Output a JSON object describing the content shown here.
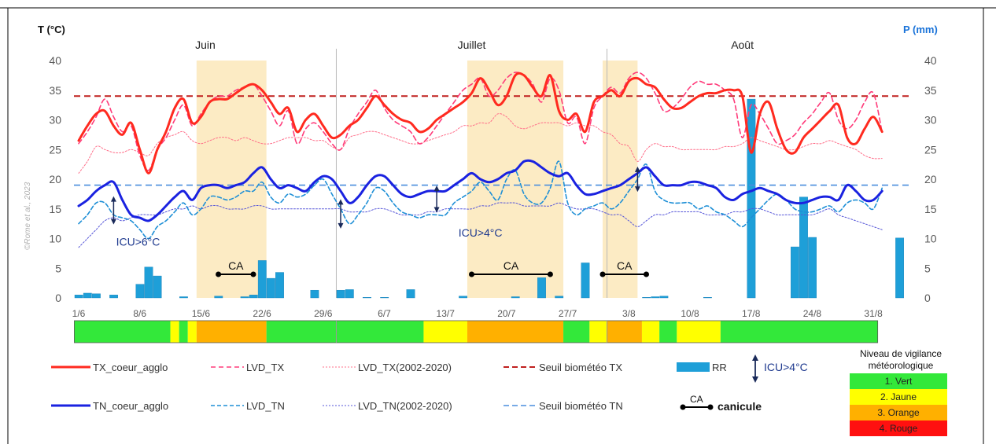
{
  "chart_data": {
    "type": "line",
    "y_left_label": "T (°C)",
    "y_right_label": "P (mm)",
    "y_left_range": [
      0,
      40
    ],
    "y_right_range": [
      0,
      40
    ],
    "y_ticks": [
      0,
      5,
      10,
      15,
      20,
      25,
      30,
      35,
      40
    ],
    "x_ticks": [
      {
        "day": 1,
        "label": "1/6"
      },
      {
        "day": 8,
        "label": "8/6"
      },
      {
        "day": 15,
        "label": "15/6"
      },
      {
        "day": 22,
        "label": "22/6"
      },
      {
        "day": 29,
        "label": "29/6"
      },
      {
        "day": 36,
        "label": "6/7"
      },
      {
        "day": 43,
        "label": "13/7"
      },
      {
        "day": 50,
        "label": "20/7"
      },
      {
        "day": 57,
        "label": "27/7"
      },
      {
        "day": 64,
        "label": "3/8"
      },
      {
        "day": 71,
        "label": "10/8"
      },
      {
        "day": 78,
        "label": "17/8"
      },
      {
        "day": 85,
        "label": "24/8"
      },
      {
        "day": 92,
        "label": "31/8"
      }
    ],
    "months": [
      {
        "label": "Juin",
        "center_day": 15.5
      },
      {
        "label": "Juillet",
        "center_day": 46
      },
      {
        "label": "Août",
        "center_day": 77
      }
    ],
    "month_separators": [
      30.5,
      61.5
    ],
    "watermark": "©Rome et al., 2023",
    "thresholds": {
      "TX": 34,
      "TN": 19
    },
    "heatwaves": [
      {
        "start": 14.5,
        "end": 22.5,
        "label": "CA",
        "bar_start": 17,
        "bar_end": 21
      },
      {
        "start": 45.5,
        "end": 56.5,
        "label": "CA",
        "bar_start": 46,
        "bar_end": 55
      },
      {
        "start": 61,
        "end": 65,
        "label": "CA",
        "bar_start": 61,
        "bar_end": 66
      }
    ],
    "annotations": [
      {
        "text": "ICU>6°C",
        "day": 7.8,
        "y": 9.5
      },
      {
        "text": "ICU>4°C",
        "day": 47,
        "y": 11
      }
    ],
    "icu_arrows": [
      {
        "day": 5,
        "y1": 17,
        "y2": 12.5
      },
      {
        "day": 31,
        "y1": 16.5,
        "y2": 11.8
      },
      {
        "day": 42,
        "y1": 18.8,
        "y2": 14.5
      },
      {
        "day": 65,
        "y1": 22,
        "y2": 18
      }
    ],
    "series": [
      {
        "name": "TX_coeur_agglo",
        "color": "#ff2a1f",
        "width": 3,
        "dash": "",
        "values": [
          26.5,
          29,
          31,
          31.5,
          29,
          27.5,
          29.5,
          25,
          21,
          25,
          28,
          32,
          33.5,
          29.5,
          30.5,
          33,
          33.5,
          33.5,
          34.5,
          35.5,
          36,
          35,
          33,
          31,
          32,
          28,
          30,
          31,
          29,
          27,
          27.5,
          29,
          30,
          32,
          34,
          32.5,
          31,
          30,
          29.5,
          28,
          28.5,
          30,
          31,
          32,
          33,
          34.5,
          37,
          35,
          32.5,
          34,
          37.5,
          37.5,
          35.5,
          34,
          37.5,
          31.5,
          30,
          31,
          28,
          33,
          34,
          35,
          34,
          36.5,
          37,
          36,
          35.5,
          33.5,
          32,
          32,
          33,
          34,
          34.5,
          34.5,
          35,
          35,
          34,
          24.5,
          31,
          33,
          28.5,
          25,
          24.5,
          27,
          28.5,
          30,
          31.5,
          32.5,
          27,
          26,
          28.5,
          30.5,
          28
        ]
      },
      {
        "name": "LVD_TX",
        "color": "#ff3b7a",
        "width": 1.6,
        "dash": "6,4",
        "values": [
          26,
          28,
          30.5,
          33.5,
          30.5,
          28,
          29,
          24,
          21.5,
          25,
          27,
          30,
          32.5,
          29,
          31,
          33,
          34,
          34,
          35,
          35.5,
          36,
          34,
          31.5,
          29,
          31.5,
          26,
          28.5,
          29.5,
          28,
          26,
          25,
          28.5,
          31,
          33,
          35,
          32,
          30,
          29,
          28,
          26,
          27,
          29,
          31,
          33,
          35,
          36,
          37,
          34,
          35,
          37,
          38,
          37.5,
          36,
          33,
          37,
          35,
          29.5,
          30.5,
          26,
          32,
          34,
          35.5,
          34.5,
          37,
          38,
          37,
          34.5,
          31.5,
          32,
          33.5,
          35.5,
          36.5,
          36,
          36,
          35,
          33.5,
          27,
          32.5,
          31,
          28.5,
          26,
          26.5,
          27.5,
          29.5,
          31,
          33,
          34.5,
          30,
          28.5,
          30,
          33,
          34.5,
          28
        ]
      },
      {
        "name": "LVD_TX(2002-2020)",
        "color": "#ff6f8a",
        "width": 1,
        "dash": "2,2",
        "values": [
          21,
          23,
          25.5,
          25,
          24.5,
          24.5,
          25,
          24.5,
          24,
          26,
          27,
          27.5,
          28,
          26.5,
          26,
          26.5,
          27,
          27,
          26.5,
          27,
          26.5,
          26,
          26,
          26.5,
          27,
          27,
          27,
          26.5,
          26.5,
          25.5,
          25,
          27,
          27.5,
          28,
          28,
          27.5,
          27,
          26.5,
          26,
          26,
          26.5,
          27,
          27.5,
          28,
          29,
          29,
          29.5,
          29.5,
          31,
          30.5,
          29,
          28.5,
          29,
          29.5,
          29.5,
          29.5,
          29,
          29.5,
          29,
          29,
          28,
          27.5,
          26,
          25.5,
          23,
          25,
          26,
          25.5,
          25.5,
          25,
          25,
          25,
          25,
          25,
          25.5,
          25.5,
          26,
          27,
          26.5,
          26,
          25.5,
          25,
          25,
          25.5,
          26,
          26,
          26.5,
          26,
          25.5,
          25,
          24,
          23.5,
          23.5
        ]
      },
      {
        "name": "TN_coeur_agglo",
        "color": "#1a22e0",
        "width": 3,
        "dash": "",
        "values": [
          15.5,
          16.5,
          18,
          19,
          19.5,
          16.5,
          14,
          13.5,
          13,
          14,
          15.5,
          17,
          18,
          16.5,
          18.5,
          19,
          19,
          18.5,
          19,
          19.5,
          21,
          22,
          20,
          18.5,
          19,
          18.5,
          18,
          19.5,
          20.5,
          20,
          18,
          16,
          17,
          19,
          20.5,
          20.5,
          19,
          17.5,
          17,
          17.5,
          18,
          18,
          18,
          19,
          20,
          21,
          20,
          19.5,
          20,
          21,
          21.5,
          23,
          23,
          22,
          21,
          20.5,
          21,
          19,
          17.5,
          17.5,
          18,
          18.5,
          19,
          20,
          21,
          22,
          20.5,
          19,
          19,
          19,
          19.5,
          19.5,
          19,
          18.5,
          17,
          16.5,
          17.5,
          18,
          18.5,
          18,
          17.5,
          16.5,
          16,
          16,
          16.5,
          17,
          17,
          16.5,
          19,
          18,
          16.5,
          16.5,
          18
        ]
      },
      {
        "name": "LVD_TN",
        "color": "#1e8fd6",
        "width": 1.6,
        "dash": "5,3",
        "values": [
          12.5,
          14,
          16,
          16,
          14,
          13.5,
          13,
          11.5,
          10,
          12,
          13,
          14.5,
          16,
          14,
          15,
          17,
          17,
          16.5,
          17,
          18,
          18,
          19.5,
          17,
          16,
          17.5,
          17,
          17.5,
          19,
          20,
          17.5,
          15,
          12.5,
          14,
          16,
          18.5,
          18,
          16,
          14.5,
          14,
          13.5,
          14,
          14,
          14,
          16,
          17,
          18,
          19.5,
          18,
          16.5,
          20,
          21.5,
          17.5,
          16,
          16,
          18.5,
          23,
          16,
          14,
          15,
          15.5,
          16,
          15,
          16,
          18,
          20,
          22.5,
          18,
          16.5,
          16,
          16,
          16,
          15,
          15.5,
          14.5,
          14,
          13,
          12,
          13.5,
          15,
          16.5,
          17.5,
          16.5,
          15,
          14.5,
          14.5,
          15,
          15.5,
          14.5,
          16,
          16.5,
          16,
          15,
          18.5
        ]
      },
      {
        "name": "LVD_TN(2002-2020)",
        "color": "#5555d8",
        "width": 1,
        "dash": "2,2",
        "values": [
          8.5,
          10,
          11.5,
          13,
          13.5,
          13,
          13.5,
          14,
          14,
          14,
          14.5,
          15,
          15,
          15.5,
          15,
          15.5,
          15.5,
          15,
          15,
          15,
          15.5,
          15.5,
          15,
          15,
          15,
          15,
          15,
          15,
          15,
          15,
          15,
          14.5,
          14.5,
          14.5,
          15,
          15,
          14.5,
          14,
          14,
          14,
          14.5,
          14.5,
          15,
          15,
          15,
          15,
          15.5,
          15.5,
          16,
          16,
          16,
          15.5,
          15.5,
          15.5,
          15.5,
          16,
          15.5,
          15,
          15,
          15,
          14.5,
          14,
          14,
          13,
          12,
          13,
          14,
          14,
          14.5,
          14.5,
          14.5,
          14.5,
          14,
          14,
          14,
          14.5,
          14.5,
          15,
          15,
          14.5,
          14,
          14,
          14,
          14,
          14,
          14.5,
          15,
          14,
          13.5,
          13,
          12.5,
          12,
          11.5
        ]
      }
    ],
    "rr": [
      0.5,
      0.8,
      0.7,
      0,
      0.5,
      0,
      0,
      2.3,
      5.2,
      3.7,
      0,
      0,
      0.2,
      0,
      0,
      0,
      0.3,
      0,
      0,
      0.2,
      0.5,
      6.3,
      3.3,
      4.3,
      0,
      0,
      0,
      1.3,
      0,
      0,
      1.3,
      1.4,
      0,
      0.1,
      0,
      0.1,
      0,
      0,
      1.4,
      0,
      0,
      0,
      0,
      0,
      0.3,
      0,
      0,
      0,
      0,
      0,
      0.2,
      0,
      0,
      3.4,
      0,
      0.3,
      0,
      0,
      5.9,
      0,
      0,
      0,
      0,
      0,
      0,
      0.1,
      0.2,
      0.3,
      0,
      0,
      0,
      0,
      0.1,
      0,
      0,
      0,
      0,
      33.5,
      0,
      0,
      0,
      0,
      8.6,
      17,
      10.2,
      0,
      0,
      0,
      0,
      0,
      0,
      0,
      0,
      0,
      10.1,
      0
    ],
    "vigilance": [
      {
        "start": 1,
        "end": 12,
        "level": 1
      },
      {
        "start": 12,
        "end": 13,
        "level": 2
      },
      {
        "start": 13,
        "end": 14,
        "level": 1
      },
      {
        "start": 14,
        "end": 15,
        "level": 2
      },
      {
        "start": 15,
        "end": 23,
        "level": 3
      },
      {
        "start": 23,
        "end": 41,
        "level": 1
      },
      {
        "start": 41,
        "end": 46,
        "level": 2
      },
      {
        "start": 46,
        "end": 57,
        "level": 3
      },
      {
        "start": 57,
        "end": 60,
        "level": 1
      },
      {
        "start": 60,
        "end": 62,
        "level": 2
      },
      {
        "start": 62,
        "end": 66,
        "level": 3
      },
      {
        "start": 66,
        "end": 68,
        "level": 2
      },
      {
        "start": 68,
        "end": 70,
        "level": 1
      },
      {
        "start": 70,
        "end": 75,
        "level": 2
      },
      {
        "start": 75,
        "end": 93,
        "level": 1
      }
    ]
  },
  "legend": {
    "tx_coeur": "TX_coeur_agglo",
    "lvd_tx": "LVD_TX",
    "lvd_tx_clim": "LVD_TX(2002-2020)",
    "seuil_tx": "Seuil biométéo TX",
    "rr": "RR",
    "icu": "ICU>4°C",
    "tn_coeur": "TN_coeur_agglo",
    "lvd_tn": "LVD_TN",
    "lvd_tn_clim": "LVD_TN(2002-2020)",
    "seuil_tn": "Seuil biométéo TN",
    "ca": "CA",
    "canicule": "canicule"
  },
  "vigilance_legend": {
    "title_line1": "Niveau de vigilance",
    "title_line2": "météorologique",
    "levels": [
      {
        "label": "1. Vert",
        "color": "#33e83a"
      },
      {
        "label": "2. Jaune",
        "color": "#ffff00"
      },
      {
        "label": "3. Orange",
        "color": "#ffb000"
      },
      {
        "label": "4. Rouge",
        "color": "#ff1010"
      }
    ]
  },
  "colors": {
    "heatwave_band": "#fcebc4",
    "rr_bar": "#1e9fd8",
    "seuil_tx": "#c0201e",
    "seuil_tn": "#4a8ede",
    "axis_left_label": "#111111",
    "axis_right_label": "#1a73d9",
    "tick_text": "#595959",
    "annotation": "#1f3a8f",
    "arrow": "#1a2a5a"
  }
}
